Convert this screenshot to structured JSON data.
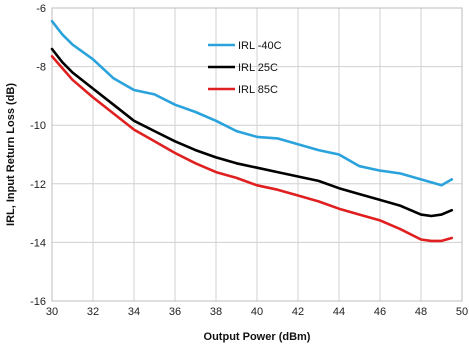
{
  "chart_data": {
    "type": "line",
    "title": "",
    "xlabel": "Output Power (dBm)",
    "ylabel": "IRL, Input Return Loss (dB)",
    "xlim": [
      30,
      50
    ],
    "ylim": [
      -16,
      -6
    ],
    "xticks": [
      30,
      32,
      34,
      36,
      38,
      40,
      42,
      44,
      46,
      48,
      50
    ],
    "yticks": [
      -6,
      -8,
      -10,
      -12,
      -14,
      -16
    ],
    "grid": true,
    "legend_position": "top-center",
    "series": [
      {
        "name": "IRL -40C",
        "color": "#2aa3dd",
        "x": [
          30,
          30.5,
          31,
          32,
          33,
          34,
          35,
          36,
          37,
          38,
          39,
          40,
          41,
          42,
          43,
          44,
          45,
          46,
          47,
          48,
          49,
          49.5
        ],
        "y": [
          -6.45,
          -6.9,
          -7.25,
          -7.75,
          -8.4,
          -8.8,
          -8.95,
          -9.3,
          -9.55,
          -9.85,
          -10.2,
          -10.4,
          -10.45,
          -10.65,
          -10.85,
          -11.0,
          -11.4,
          -11.55,
          -11.65,
          -11.85,
          -12.05,
          -11.85
        ]
      },
      {
        "name": "IRL 25C",
        "color": "#000000",
        "x": [
          30,
          30.5,
          31,
          32,
          33,
          34,
          35,
          36,
          37,
          38,
          39,
          40,
          41,
          42,
          43,
          44,
          45,
          46,
          47,
          48,
          48.5,
          49,
          49.5
        ],
        "y": [
          -7.4,
          -7.85,
          -8.2,
          -8.75,
          -9.3,
          -9.85,
          -10.2,
          -10.55,
          -10.85,
          -11.1,
          -11.3,
          -11.45,
          -11.6,
          -11.75,
          -11.9,
          -12.15,
          -12.35,
          -12.55,
          -12.75,
          -13.05,
          -13.1,
          -13.05,
          -12.9
        ]
      },
      {
        "name": "IRL 85C",
        "color": "#e02020",
        "x": [
          30,
          30.5,
          31,
          32,
          33,
          34,
          35,
          36,
          37,
          38,
          39,
          40,
          41,
          42,
          43,
          44,
          45,
          46,
          47,
          48,
          48.5,
          49,
          49.5
        ],
        "y": [
          -7.65,
          -8.05,
          -8.45,
          -9.05,
          -9.6,
          -10.15,
          -10.55,
          -10.95,
          -11.3,
          -11.6,
          -11.8,
          -12.05,
          -12.2,
          -12.4,
          -12.6,
          -12.85,
          -13.05,
          -13.25,
          -13.55,
          -13.9,
          -13.95,
          -13.95,
          -13.85
        ]
      }
    ]
  }
}
